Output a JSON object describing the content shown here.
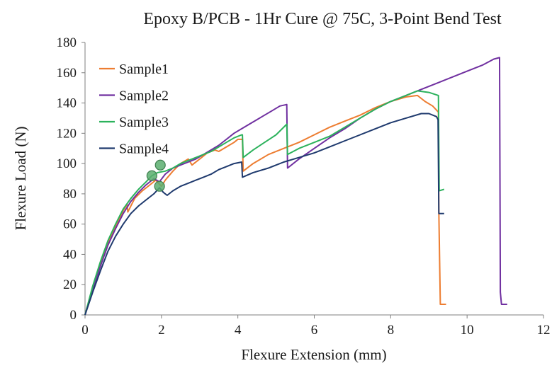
{
  "chart_data": {
    "type": "line",
    "title": "Epoxy B/PCB - 1Hr Cure @ 75C, 3-Point Bend Test",
    "xlabel": "Flexure Extension (mm)",
    "ylabel": "Flexure Load (N)",
    "xlim": [
      0,
      12
    ],
    "ylim": [
      0,
      180
    ],
    "xticks": [
      "0",
      "2",
      "4",
      "6",
      "8",
      "10",
      "12"
    ],
    "yticks": [
      "0",
      "20",
      "40",
      "60",
      "80",
      "100",
      "120",
      "140",
      "160",
      "180"
    ],
    "grid": false,
    "legend_position": "top-left",
    "series": [
      {
        "name": "Sample1",
        "color": "#ED7D31",
        "points": [
          [
            0,
            0
          ],
          [
            0.2,
            18
          ],
          [
            0.4,
            34
          ],
          [
            0.6,
            47
          ],
          [
            0.8,
            58
          ],
          [
            1.0,
            69
          ],
          [
            1.1,
            73
          ],
          [
            1.12,
            68
          ],
          [
            1.3,
            77
          ],
          [
            1.5,
            82
          ],
          [
            1.7,
            86
          ],
          [
            1.85,
            89
          ],
          [
            2.0,
            85
          ],
          [
            2.1,
            89
          ],
          [
            2.3,
            95
          ],
          [
            2.5,
            100
          ],
          [
            2.7,
            103
          ],
          [
            2.8,
            99
          ],
          [
            3.0,
            103
          ],
          [
            3.2,
            107
          ],
          [
            3.4,
            109
          ],
          [
            3.5,
            108
          ],
          [
            3.7,
            111
          ],
          [
            3.9,
            114
          ],
          [
            4.0,
            116
          ],
          [
            4.12,
            116
          ],
          [
            4.14,
            95
          ],
          [
            4.4,
            100
          ],
          [
            4.8,
            106
          ],
          [
            5.2,
            110
          ],
          [
            5.6,
            114
          ],
          [
            6.0,
            119
          ],
          [
            6.4,
            124
          ],
          [
            6.8,
            128
          ],
          [
            7.2,
            132
          ],
          [
            7.6,
            137
          ],
          [
            8.0,
            141
          ],
          [
            8.4,
            144
          ],
          [
            8.7,
            145
          ],
          [
            8.9,
            141
          ],
          [
            9.1,
            138
          ],
          [
            9.25,
            134
          ],
          [
            9.26,
            68
          ],
          [
            9.3,
            7
          ],
          [
            9.45,
            7
          ]
        ]
      },
      {
        "name": "Sample2",
        "color": "#7030A0",
        "points": [
          [
            0,
            0
          ],
          [
            0.2,
            17
          ],
          [
            0.4,
            32
          ],
          [
            0.6,
            46
          ],
          [
            0.8,
            57
          ],
          [
            1.0,
            67
          ],
          [
            1.2,
            75
          ],
          [
            1.4,
            81
          ],
          [
            1.6,
            86
          ],
          [
            1.8,
            90
          ],
          [
            1.95,
            88
          ],
          [
            2.1,
            93
          ],
          [
            2.3,
            97
          ],
          [
            2.5,
            99
          ],
          [
            2.7,
            101
          ],
          [
            2.9,
            103
          ],
          [
            3.1,
            106
          ],
          [
            3.3,
            109
          ],
          [
            3.5,
            112
          ],
          [
            3.7,
            116
          ],
          [
            3.9,
            120
          ],
          [
            4.1,
            123
          ],
          [
            4.3,
            126
          ],
          [
            4.5,
            129
          ],
          [
            4.7,
            132
          ],
          [
            4.9,
            135
          ],
          [
            5.1,
            138
          ],
          [
            5.28,
            139
          ],
          [
            5.3,
            97
          ],
          [
            5.6,
            103
          ],
          [
            6.0,
            110
          ],
          [
            6.4,
            117
          ],
          [
            6.8,
            123
          ],
          [
            7.2,
            130
          ],
          [
            7.6,
            136
          ],
          [
            8.0,
            141
          ],
          [
            8.4,
            145
          ],
          [
            8.8,
            149
          ],
          [
            9.2,
            153
          ],
          [
            9.6,
            157
          ],
          [
            10.0,
            161
          ],
          [
            10.4,
            165
          ],
          [
            10.7,
            169
          ],
          [
            10.85,
            170
          ],
          [
            10.87,
            15
          ],
          [
            10.9,
            7
          ],
          [
            11.05,
            7
          ]
        ]
      },
      {
        "name": "Sample3",
        "color": "#2CB25C",
        "points": [
          [
            0,
            0
          ],
          [
            0.2,
            19
          ],
          [
            0.4,
            35
          ],
          [
            0.6,
            49
          ],
          [
            0.8,
            60
          ],
          [
            1.0,
            70
          ],
          [
            1.2,
            77
          ],
          [
            1.4,
            83
          ],
          [
            1.6,
            88
          ],
          [
            1.75,
            92
          ],
          [
            1.9,
            94
          ],
          [
            2.1,
            95
          ],
          [
            2.3,
            97
          ],
          [
            2.5,
            100
          ],
          [
            2.7,
            102
          ],
          [
            2.9,
            104
          ],
          [
            3.1,
            106
          ],
          [
            3.3,
            108
          ],
          [
            3.5,
            111
          ],
          [
            3.7,
            114
          ],
          [
            3.9,
            117
          ],
          [
            4.1,
            119
          ],
          [
            4.12,
            119
          ],
          [
            4.14,
            104
          ],
          [
            4.4,
            109
          ],
          [
            4.7,
            114
          ],
          [
            5.0,
            119
          ],
          [
            5.28,
            126
          ],
          [
            5.3,
            106
          ],
          [
            5.6,
            110
          ],
          [
            6.0,
            114
          ],
          [
            6.4,
            118
          ],
          [
            6.8,
            124
          ],
          [
            7.2,
            130
          ],
          [
            7.6,
            136
          ],
          [
            8.0,
            141
          ],
          [
            8.4,
            145
          ],
          [
            8.7,
            148
          ],
          [
            9.0,
            147
          ],
          [
            9.25,
            145
          ],
          [
            9.27,
            82
          ],
          [
            9.4,
            83
          ]
        ]
      },
      {
        "name": "Sample4",
        "color": "#1F3A6E",
        "points": [
          [
            0,
            0
          ],
          [
            0.2,
            15
          ],
          [
            0.4,
            29
          ],
          [
            0.6,
            42
          ],
          [
            0.8,
            52
          ],
          [
            1.0,
            60
          ],
          [
            1.2,
            67
          ],
          [
            1.4,
            72
          ],
          [
            1.6,
            76
          ],
          [
            1.8,
            80
          ],
          [
            1.95,
            84
          ],
          [
            2.05,
            81
          ],
          [
            2.15,
            79
          ],
          [
            2.3,
            82
          ],
          [
            2.5,
            85
          ],
          [
            2.7,
            87
          ],
          [
            2.9,
            89
          ],
          [
            3.1,
            91
          ],
          [
            3.3,
            93
          ],
          [
            3.5,
            96
          ],
          [
            3.7,
            98
          ],
          [
            3.9,
            100
          ],
          [
            4.1,
            101
          ],
          [
            4.12,
            91
          ],
          [
            4.4,
            94
          ],
          [
            4.8,
            97
          ],
          [
            5.2,
            101
          ],
          [
            5.6,
            104
          ],
          [
            6.0,
            107
          ],
          [
            6.4,
            111
          ],
          [
            6.8,
            115
          ],
          [
            7.2,
            119
          ],
          [
            7.6,
            123
          ],
          [
            8.0,
            127
          ],
          [
            8.4,
            130
          ],
          [
            8.8,
            133
          ],
          [
            9.0,
            133
          ],
          [
            9.2,
            131
          ],
          [
            9.24,
            129
          ],
          [
            9.26,
            67
          ],
          [
            9.4,
            67
          ]
        ]
      }
    ],
    "markers": [
      {
        "x": 1.75,
        "y": 92,
        "color": "#5BAE6E"
      },
      {
        "x": 1.97,
        "y": 99,
        "color": "#5BAE6E"
      },
      {
        "x": 1.95,
        "y": 85,
        "color": "#5BAE6E"
      }
    ]
  }
}
